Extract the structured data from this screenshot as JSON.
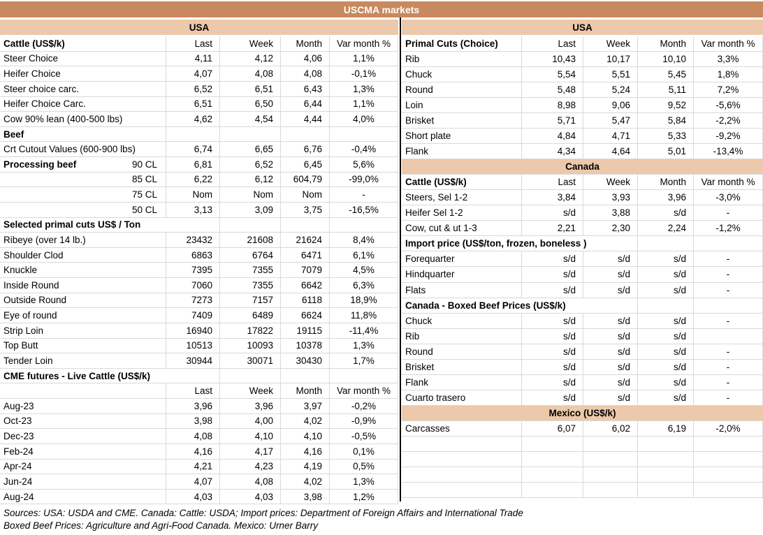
{
  "title": "USCMA markets",
  "colors": {
    "title_bg": "#C8895E",
    "section_bg": "#ECC9AB",
    "grid": "#D9D9D9",
    "divider": "#000000"
  },
  "left": {
    "region_header": "USA",
    "rows": [
      {
        "type": "colheads",
        "label": "Cattle (US$/k)",
        "last": "Last",
        "week": "Week",
        "month": "Month",
        "var": "Var month %"
      },
      {
        "type": "data",
        "label": "Steer Choice",
        "last": "4,11",
        "week": "4,12",
        "month": "4,06",
        "var": "1,1%"
      },
      {
        "type": "data",
        "label": "Heifer Choice",
        "last": "4,07",
        "week": "4,08",
        "month": "4,08",
        "var": "-0,1%"
      },
      {
        "type": "data",
        "label": "Steer choice carc.",
        "last": "6,52",
        "week": "6,51",
        "month": "6,43",
        "var": "1,3%"
      },
      {
        "type": "data",
        "label": "Heifer Choice Carc.",
        "last": "6,51",
        "week": "6,50",
        "month": "6,44",
        "var": "1,1%"
      },
      {
        "type": "data",
        "label": "Cow 90% lean (400-500 lbs)",
        "last": "4,62",
        "week": "4,54",
        "month": "4,44",
        "var": "4,0%"
      },
      {
        "type": "section",
        "label": "Beef",
        "span": 1
      },
      {
        "type": "data",
        "label": "Crt Cutout Values (600-900 lbs)",
        "last": "6,74",
        "week": "6,65",
        "month": "6,76",
        "var": "-0,4%"
      },
      {
        "type": "data",
        "label": "Processing beef",
        "label_bold": true,
        "sub": "90 CL",
        "last": "6,81",
        "week": "6,52",
        "month": "6,45",
        "var": "5,6%"
      },
      {
        "type": "data",
        "sub": "85 CL",
        "last": "6,22",
        "week": "6,12",
        "month": "604,79",
        "var": "-99,0%"
      },
      {
        "type": "data",
        "sub": "75 CL",
        "last": "Nom",
        "week": "Nom",
        "month": "Nom",
        "var": "-"
      },
      {
        "type": "data",
        "sub": "50 CL",
        "last": "3,13",
        "week": "3,09",
        "month": "3,75",
        "var": "-16,5%"
      },
      {
        "type": "section",
        "label": "Selected primal cuts US$ / Ton",
        "span": 2
      },
      {
        "type": "data",
        "label": "Ribeye (over 14 lb.)",
        "last": "23432",
        "week": "21608",
        "month": "21624",
        "var": "8,4%"
      },
      {
        "type": "data",
        "label": "Shoulder Clod",
        "last": "6863",
        "week": "6764",
        "month": "6471",
        "var": "6,1%"
      },
      {
        "type": "data",
        "label": "Knuckle",
        "last": "7395",
        "week": "7355",
        "month": "7079",
        "var": "4,5%"
      },
      {
        "type": "data",
        "label": "Inside Round",
        "last": "7060",
        "week": "7355",
        "month": "6642",
        "var": "6,3%"
      },
      {
        "type": "data",
        "label": "Outside Round",
        "last": "7273",
        "week": "7157",
        "month": "6118",
        "var": "18,9%"
      },
      {
        "type": "data",
        "label": "Eye of round",
        "last": "7409",
        "week": "6489",
        "month": "6624",
        "var": "11,8%"
      },
      {
        "type": "data",
        "label": "Strip Loin",
        "last": "16940",
        "week": "17822",
        "month": "19115",
        "var": "-11,4%"
      },
      {
        "type": "data",
        "label": "Top Butt",
        "last": "10513",
        "week": "10093",
        "month": "10378",
        "var": "1,3%"
      },
      {
        "type": "data",
        "label": "Tender Loin",
        "last": "30944",
        "week": "30071",
        "month": "30430",
        "var": "1,7%"
      },
      {
        "type": "section",
        "label": "CME futures - Live Cattle (US$/k)",
        "span": 2
      },
      {
        "type": "colheads",
        "label": "",
        "last": "Last",
        "week": "Week",
        "month": "Month",
        "var": "Var month %"
      },
      {
        "type": "data",
        "label": "Aug-23",
        "last": "3,96",
        "week": "3,96",
        "month": "3,97",
        "var": "-0,2%"
      },
      {
        "type": "data",
        "label": "Oct-23",
        "last": "3,98",
        "week": "4,00",
        "month": "4,02",
        "var": "-0,9%"
      },
      {
        "type": "data",
        "label": "Dec-23",
        "last": "4,08",
        "week": "4,10",
        "month": "4,10",
        "var": "-0,5%"
      },
      {
        "type": "data",
        "label": "Feb-24",
        "last": "4,16",
        "week": "4,17",
        "month": "4,16",
        "var": "0,1%"
      },
      {
        "type": "data",
        "label": "Apr-24",
        "last": "4,21",
        "week": "4,23",
        "month": "4,19",
        "var": "0,5%"
      },
      {
        "type": "data",
        "label": "Jun-24",
        "last": "4,07",
        "week": "4,08",
        "month": "4,02",
        "var": "1,3%"
      },
      {
        "type": "data",
        "label": "Aug-24",
        "last": "4,03",
        "week": "4,03",
        "month": "3,98",
        "var": "1,2%"
      }
    ]
  },
  "right": {
    "region_header": "USA",
    "rows": [
      {
        "type": "colheads",
        "label": "Primal Cuts (Choice)",
        "last": "Last",
        "week": "Week",
        "month": "Month",
        "var": "Var month %"
      },
      {
        "type": "data",
        "label": "Rib",
        "last": "10,43",
        "week": "10,17",
        "month": "10,10",
        "var": "3,3%"
      },
      {
        "type": "data",
        "label": "Chuck",
        "last": "5,54",
        "week": "5,51",
        "month": "5,45",
        "var": "1,8%"
      },
      {
        "type": "data",
        "label": "Round",
        "last": "5,48",
        "week": "5,24",
        "month": "5,11",
        "var": "7,2%"
      },
      {
        "type": "data",
        "label": "Loin",
        "last": "8,98",
        "week": "9,06",
        "month": "9,52",
        "var": "-5,6%"
      },
      {
        "type": "data",
        "label": "Brisket",
        "last": "5,71",
        "week": "5,47",
        "month": "5,84",
        "var": "-2,2%"
      },
      {
        "type": "data",
        "label": "Short plate",
        "last": "4,84",
        "week": "4,71",
        "month": "5,33",
        "var": "-9,2%"
      },
      {
        "type": "data",
        "label": "Flank",
        "last": "4,34",
        "week": "4,64",
        "month": "5,01",
        "var": "-13,4%"
      },
      {
        "type": "bar",
        "label": "Canada"
      },
      {
        "type": "colheads",
        "label": "Cattle (US$/k)",
        "last": "Last",
        "week": "Week",
        "month": "Month",
        "var": "Var month %"
      },
      {
        "type": "data",
        "label": "Steers, Sel 1-2",
        "last": "3,84",
        "week": "3,93",
        "month": "3,96",
        "var": "-3,0%"
      },
      {
        "type": "data",
        "label": "Heifer Sel 1-2",
        "last": "s/d",
        "week": "3,88",
        "month": "s/d",
        "var": "-"
      },
      {
        "type": "data",
        "label": "Cow, cut & ut 1-3",
        "last": "2,21",
        "week": "2,30",
        "month": "2,24",
        "var": "-1,2%"
      },
      {
        "type": "section",
        "label": "Import price (US$/ton, frozen, boneless )",
        "span": 3
      },
      {
        "type": "data",
        "label": "Forequarter",
        "last": "s/d",
        "week": "s/d",
        "month": "s/d",
        "var": "-"
      },
      {
        "type": "data",
        "label": "Hindquarter",
        "last": "s/d",
        "week": "s/d",
        "month": "s/d",
        "var": "-"
      },
      {
        "type": "data",
        "label": "Flats",
        "last": "s/d",
        "week": "s/d",
        "month": "s/d",
        "var": "-"
      },
      {
        "type": "section",
        "label": "Canada - Boxed Beef Prices (US$/k)",
        "span": 3
      },
      {
        "type": "data",
        "label": "Chuck",
        "last": "s/d",
        "week": "s/d",
        "month": "s/d",
        "var": "-"
      },
      {
        "type": "data",
        "label": "Rib",
        "last": "s/d",
        "week": "s/d",
        "month": "s/d",
        "var": ""
      },
      {
        "type": "data",
        "label": "Round",
        "last": "s/d",
        "week": "s/d",
        "month": "s/d",
        "var": "-"
      },
      {
        "type": "data",
        "label": "Brisket",
        "last": "s/d",
        "week": "s/d",
        "month": "s/d",
        "var": "-"
      },
      {
        "type": "data",
        "label": "Flank",
        "last": "s/d",
        "week": "s/d",
        "month": "s/d",
        "var": "-"
      },
      {
        "type": "data",
        "label": "Cuarto trasero",
        "last": "s/d",
        "week": "s/d",
        "month": "s/d",
        "var": "-"
      },
      {
        "type": "bar",
        "label": "Mexico (US$/k)"
      },
      {
        "type": "data",
        "label": "Carcasses",
        "last": "6,07",
        "week": "6,02",
        "month": "6,19",
        "var": "-2,0%"
      },
      {
        "type": "empty"
      },
      {
        "type": "empty"
      },
      {
        "type": "empty"
      },
      {
        "type": "empty"
      }
    ]
  },
  "footer": {
    "line1": "Sources: USA: USDA and CME. Canada: Cattle: USDA; Import prices: Department of Foreign Affairs and International Trade",
    "line2": "Boxed Beef Prices: Agriculture and Agri-Food Canada. Mexico: Urner Barry"
  }
}
